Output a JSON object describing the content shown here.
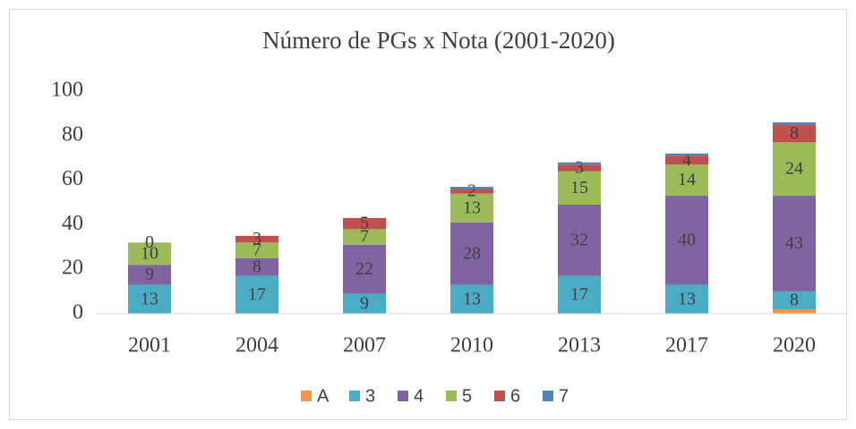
{
  "chart_data": {
    "type": "stacked_bar",
    "title": "Número de PGs  x Nota (2001-2020)",
    "categories": [
      "2001",
      "2004",
      "2007",
      "2010",
      "2013",
      "2017",
      "2020"
    ],
    "series": [
      {
        "name": "A",
        "color": "#f79646",
        "values": [
          0,
          0,
          0,
          0,
          0,
          0,
          2
        ],
        "data_labels": false
      },
      {
        "name": "3",
        "color": "#4bacc6",
        "values": [
          13,
          17,
          9,
          13,
          17,
          13,
          8
        ],
        "data_labels": true
      },
      {
        "name": "4",
        "color": "#8064a2",
        "values": [
          9,
          8,
          22,
          28,
          32,
          40,
          43
        ],
        "data_labels": true
      },
      {
        "name": "5",
        "color": "#9bbb59",
        "values": [
          10,
          7,
          7,
          13,
          15,
          14,
          24
        ],
        "data_labels": true
      },
      {
        "name": "6",
        "color": "#c0504d",
        "values": [
          0,
          3,
          5,
          2,
          3,
          4,
          8
        ],
        "data_labels": true
      },
      {
        "name": "7",
        "color": "#4f81bd",
        "values": [
          0,
          0,
          0,
          1,
          1,
          1,
          1
        ],
        "data_labels": false
      }
    ],
    "ylim": [
      0,
      100
    ],
    "yticks": [
      0,
      20,
      40,
      60,
      80,
      100
    ],
    "grid": false,
    "legend": "bottom"
  }
}
